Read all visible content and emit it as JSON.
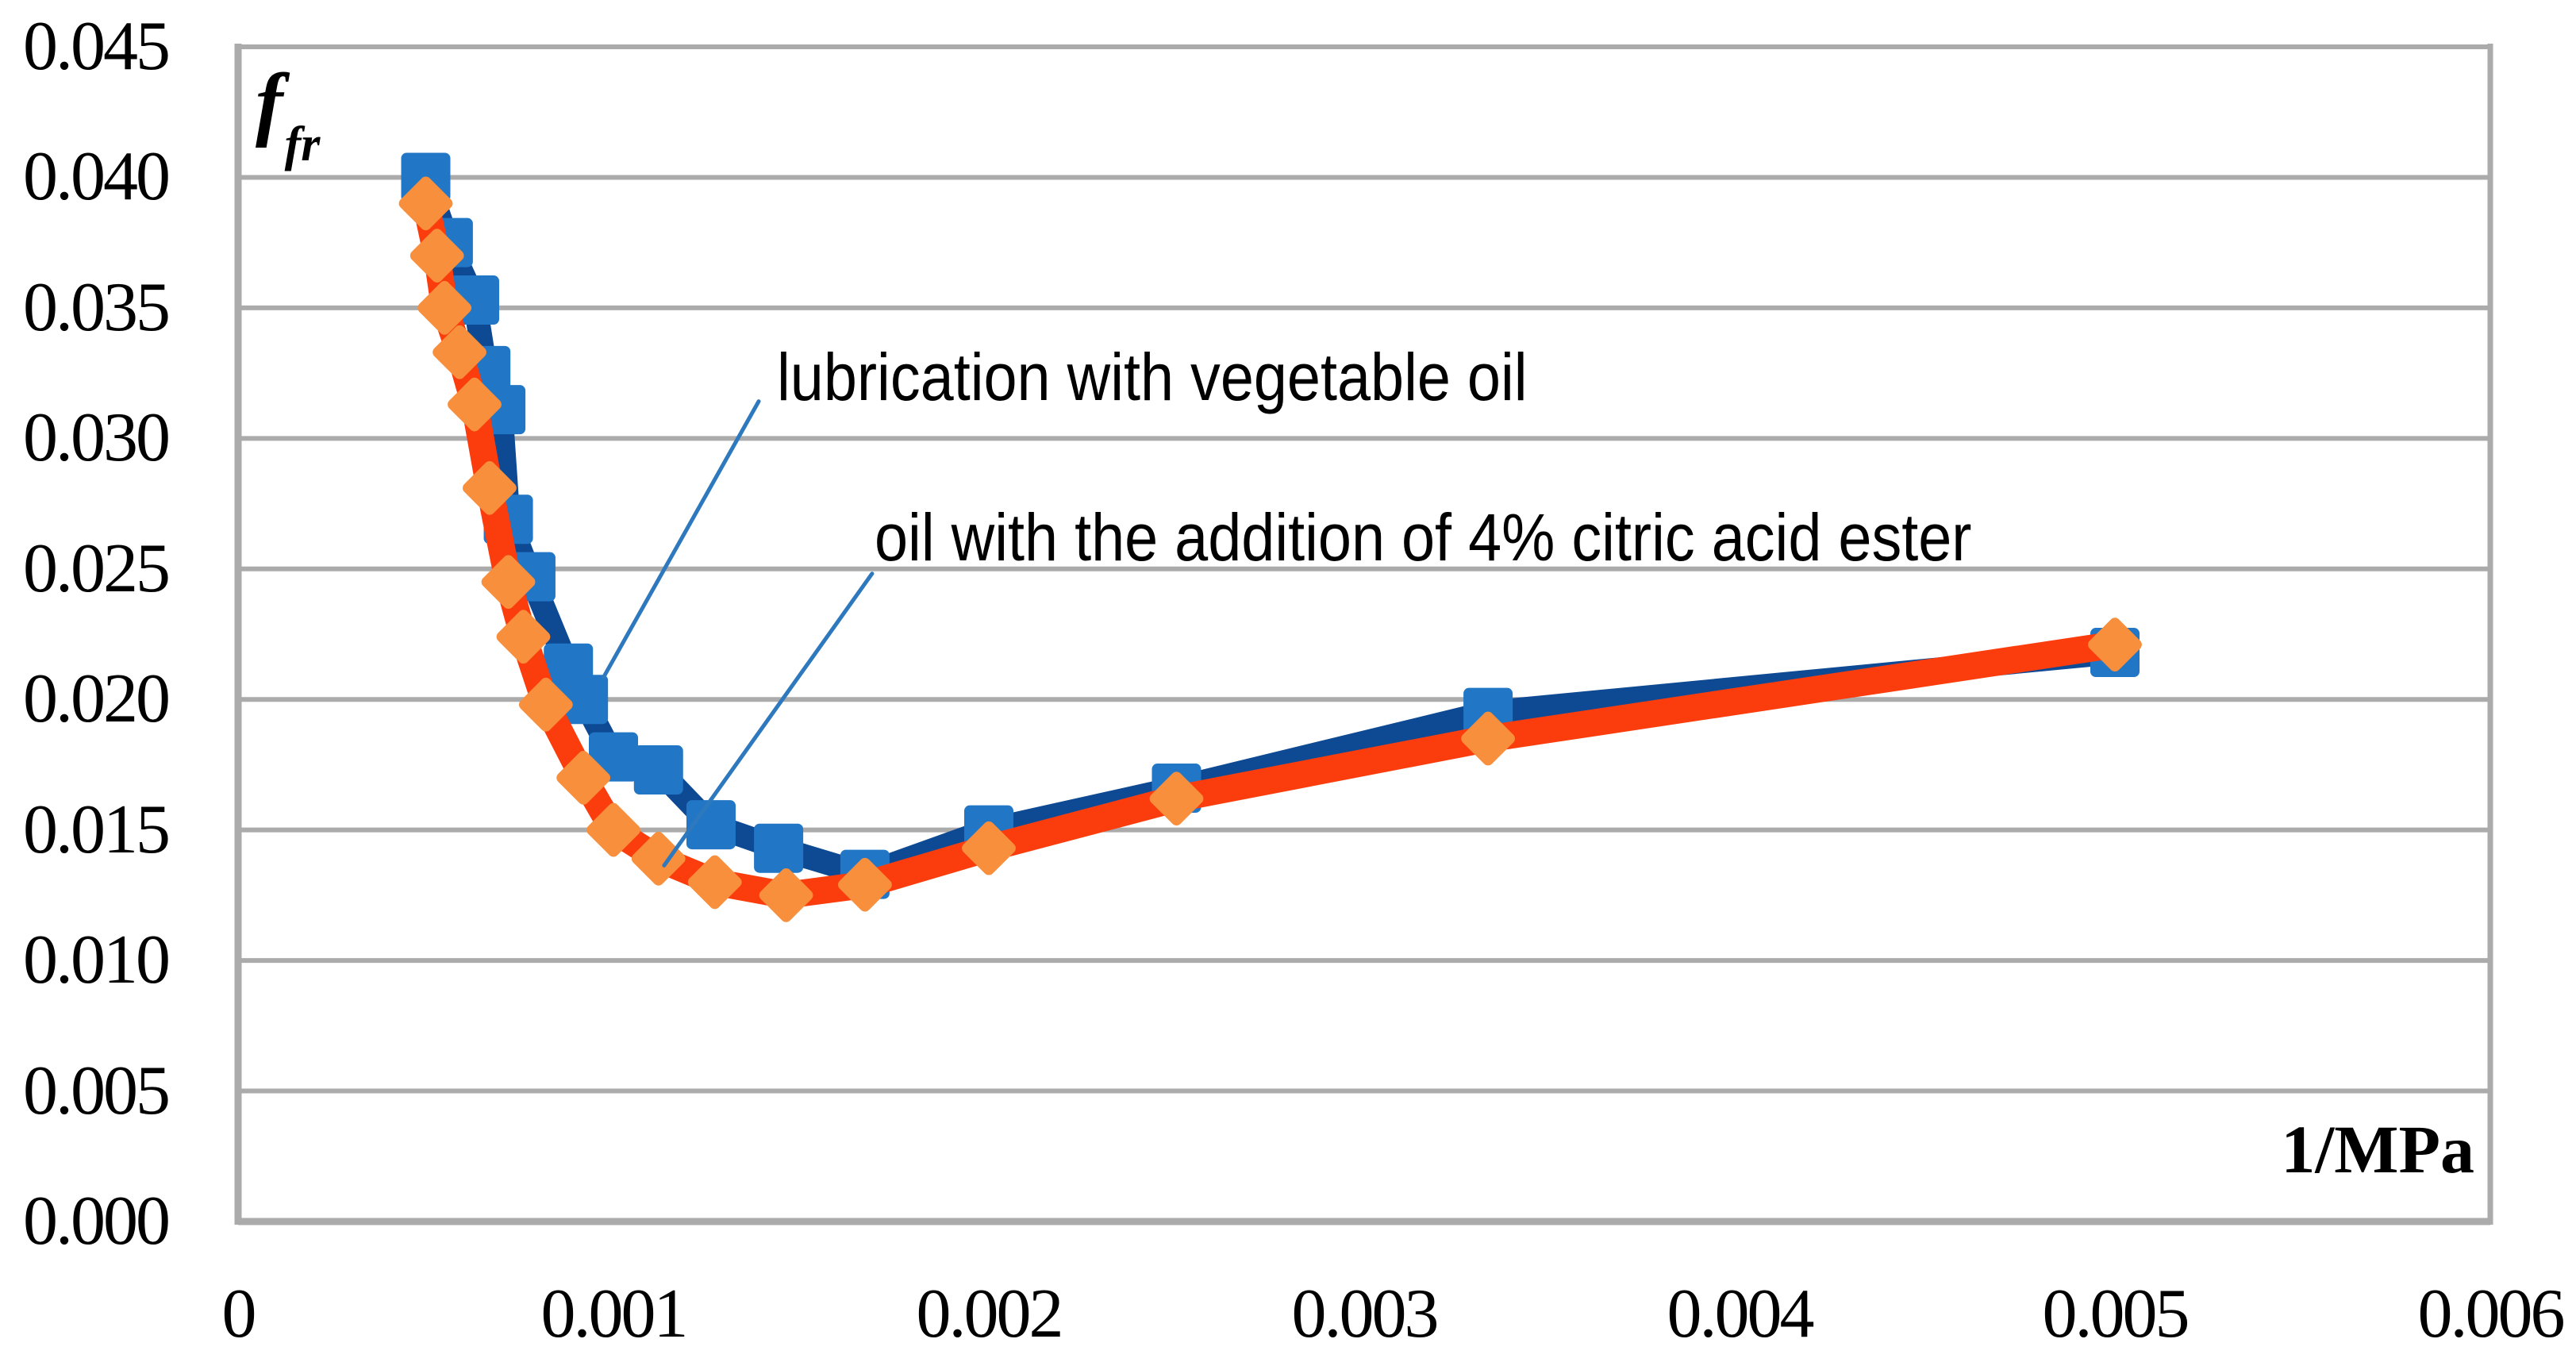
{
  "chart_data": {
    "type": "line",
    "title": "",
    "xlabel": "1/MPa",
    "ylabel_main": "f",
    "ylabel_sub": "fr",
    "xlim": [
      0,
      0.006
    ],
    "ylim": [
      0,
      0.045
    ],
    "grid": "horizontal-only",
    "legend_position": "none (inline text callouts)",
    "colors": {
      "grid": "#ABABAB",
      "series1_line": "#0E4A94",
      "series1_marker": "#2176C6",
      "series2_line": "#FB3D0D",
      "series2_marker": "#F78F3D",
      "leader_line": "#2E79BE",
      "text": "#000000"
    },
    "x_ticks": [
      {
        "value": 0,
        "label": "0"
      },
      {
        "value": 0.001,
        "label": "0.001"
      },
      {
        "value": 0.002,
        "label": "0.002"
      },
      {
        "value": 0.003,
        "label": "0.003"
      },
      {
        "value": 0.004,
        "label": "0.004"
      },
      {
        "value": 0.005,
        "label": "0.005"
      },
      {
        "value": 0.006,
        "label": "0.006"
      }
    ],
    "y_ticks": [
      {
        "value": 0.0,
        "label": "0.000"
      },
      {
        "value": 0.005,
        "label": "0.005"
      },
      {
        "value": 0.01,
        "label": "0.010"
      },
      {
        "value": 0.015,
        "label": "0.015"
      },
      {
        "value": 0.02,
        "label": "0.020"
      },
      {
        "value": 0.025,
        "label": "0.025"
      },
      {
        "value": 0.03,
        "label": "0.030"
      },
      {
        "value": 0.035,
        "label": "0.035"
      },
      {
        "value": 0.04,
        "label": "0.040"
      },
      {
        "value": 0.045,
        "label": "0.045"
      }
    ],
    "series": [
      {
        "name": "lubrication with vegetable oil",
        "marker": "square",
        "points": [
          [
            0.0005,
            0.04
          ],
          [
            0.00056,
            0.0375
          ],
          [
            0.00063,
            0.0353
          ],
          [
            0.00066,
            0.0326
          ],
          [
            0.0007,
            0.0311
          ],
          [
            0.00072,
            0.0269
          ],
          [
            0.00078,
            0.0247
          ],
          [
            0.00088,
            0.0212
          ],
          [
            0.00092,
            0.02
          ],
          [
            0.001,
            0.0178
          ],
          [
            0.00112,
            0.0173
          ],
          [
            0.00126,
            0.0152
          ],
          [
            0.00144,
            0.0143
          ],
          [
            0.00167,
            0.0133
          ],
          [
            0.002,
            0.015
          ],
          [
            0.0025,
            0.0166
          ],
          [
            0.00333,
            0.0195
          ],
          [
            0.005,
            0.0218
          ]
        ]
      },
      {
        "name": "oil with the addition of 4% citric acid ester",
        "marker": "diamond",
        "points": [
          [
            0.0005,
            0.039
          ],
          [
            0.00053,
            0.037
          ],
          [
            0.00055,
            0.035
          ],
          [
            0.00059,
            0.0333
          ],
          [
            0.00063,
            0.0313
          ],
          [
            0.00067,
            0.0281
          ],
          [
            0.00072,
            0.0245
          ],
          [
            0.00076,
            0.0224
          ],
          [
            0.00082,
            0.0198
          ],
          [
            0.00092,
            0.017
          ],
          [
            0.001,
            0.015
          ],
          [
            0.00112,
            0.0139
          ],
          [
            0.00127,
            0.013
          ],
          [
            0.00146,
            0.0125
          ],
          [
            0.00167,
            0.0129
          ],
          [
            0.002,
            0.0143
          ],
          [
            0.0025,
            0.0162
          ],
          [
            0.00333,
            0.0185
          ],
          [
            0.005,
            0.0221
          ]
        ]
      }
    ],
    "annotations": [
      {
        "text": "lubrication with vegetable oil",
        "anchor_x": 0.001435,
        "anchor_y": 0.03382,
        "leader": {
          "x1": 0.001387,
          "y1": 0.03142,
          "x2": 0.000974,
          "y2": 0.02086
        }
      },
      {
        "text": "oil with the addition of 4% citric acid ester",
        "anchor_x": 0.001695,
        "anchor_y": 0.02767,
        "leader": {
          "x1": 0.001689,
          "y1": 0.02482,
          "x2": 0.001135,
          "y2": 0.01364
        }
      }
    ]
  }
}
